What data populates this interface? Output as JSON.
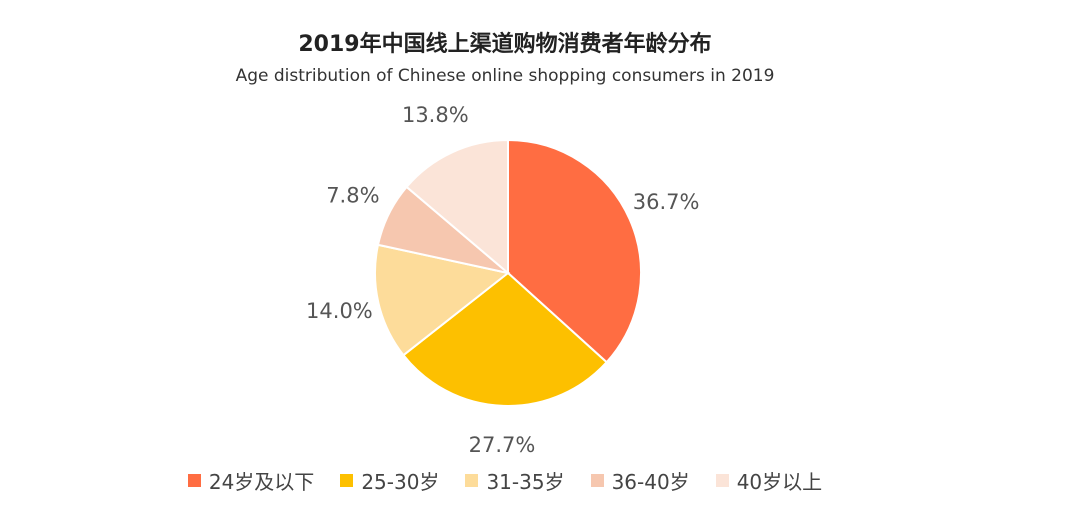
{
  "chart_data": {
    "type": "pie",
    "title": "2019年中国线上渠道购物消费者年龄分布",
    "subtitle": "Age distribution of Chinese online shopping consumers in 2019",
    "categories": [
      "24岁及以下",
      "25-30岁",
      "31-35岁",
      "36-40岁",
      "40岁以上"
    ],
    "values": [
      36.7,
      27.7,
      14.0,
      7.8,
      13.8
    ],
    "data_labels": [
      "36.7%",
      "27.7%",
      "14.0%",
      "7.8%",
      "13.8%"
    ],
    "colors": [
      "#FF6D42",
      "#FDC000",
      "#FDDC9A",
      "#F6C7AF",
      "#FBE4D8"
    ],
    "legend_position": "bottom"
  }
}
